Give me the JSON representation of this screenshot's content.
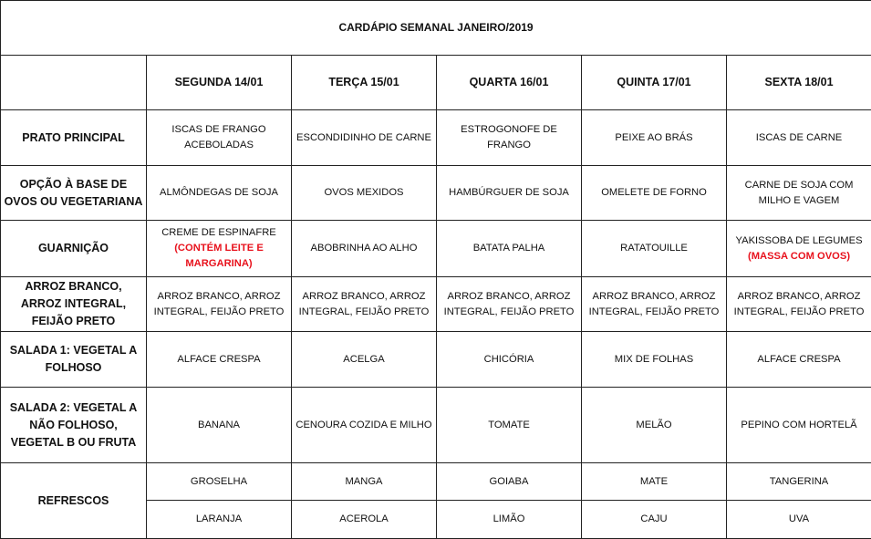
{
  "title": "CARDÁPIO SEMANAL JANEIRO/2019",
  "days": [
    "SEGUNDA   14/01",
    "TERÇA 15/01",
    "QUARTA 16/01",
    "QUINTA 17/01",
    "SEXTA 18/01"
  ],
  "note_color": "#e8121d",
  "rows": [
    {
      "label": "PRATO PRINCIPAL",
      "cells": [
        {
          "text": "ISCAS DE FRANGO ACEBOLADAS"
        },
        {
          "text": "ESCONDIDINHO DE CARNE"
        },
        {
          "text": "ESTROGONOFE DE FRANGO"
        },
        {
          "text": "PEIXE AO BRÁS"
        },
        {
          "text": "ISCAS DE CARNE"
        }
      ]
    },
    {
      "label": "OPÇÃO À BASE DE OVOS OU VEGETARIANA",
      "cells": [
        {
          "text": "ALMÔNDEGAS DE SOJA"
        },
        {
          "text": "OVOS MEXIDOS"
        },
        {
          "text": "HAMBÚRGUER DE SOJA"
        },
        {
          "text": "OMELETE DE FORNO"
        },
        {
          "text": "CARNE DE SOJA COM MILHO E VAGEM"
        }
      ]
    },
    {
      "label": "GUARNIÇÃO",
      "cells": [
        {
          "text": "CREME DE ESPINAFRE",
          "note": "(CONTÉM LEITE E MARGARINA)"
        },
        {
          "text": "ABOBRINHA AO ALHO"
        },
        {
          "text": "BATATA PALHA"
        },
        {
          "text": "RATATOUILLE"
        },
        {
          "text": "YAKISSOBA DE LEGUMES",
          "note": "(MASSA COM OVOS)"
        }
      ]
    },
    {
      "label": "ARROZ BRANCO, ARROZ INTEGRAL, FEIJÃO PRETO",
      "cells": [
        {
          "text": "ARROZ BRANCO, ARROZ INTEGRAL, FEIJÃO PRETO"
        },
        {
          "text": "ARROZ BRANCO, ARROZ INTEGRAL, FEIJÃO PRETO"
        },
        {
          "text": "ARROZ BRANCO, ARROZ INTEGRAL, FEIJÃO PRETO"
        },
        {
          "text": "ARROZ BRANCO, ARROZ INTEGRAL, FEIJÃO PRETO"
        },
        {
          "text": "ARROZ BRANCO, ARROZ INTEGRAL, FEIJÃO PRETO"
        }
      ]
    },
    {
      "label": "SALADA 1: VEGETAL A FOLHOSO",
      "cells": [
        {
          "text": "ALFACE CRESPA"
        },
        {
          "text": "ACELGA"
        },
        {
          "text": "CHICÓRIA"
        },
        {
          "text": "MIX DE FOLHAS"
        },
        {
          "text": "ALFACE CRESPA"
        }
      ]
    },
    {
      "label": "SALADA 2: VEGETAL A NÃO FOLHOSO, VEGETAL B OU FRUTA",
      "cells": [
        {
          "text": "BANANA"
        },
        {
          "text": "CENOURA COZIDA E MILHO"
        },
        {
          "text": "TOMATE"
        },
        {
          "text": "MELÃO"
        },
        {
          "text": "PEPINO COM HORTELÃ"
        }
      ]
    }
  ],
  "refrescos": {
    "label": "REFRESCOS",
    "line1": [
      "GROSELHA",
      "MANGA",
      "GOIABA",
      "MATE",
      "TANGERINA"
    ],
    "line2": [
      "LARANJA",
      "ACEROLA",
      "LIMÃO",
      "CAJU",
      "UVA"
    ]
  }
}
